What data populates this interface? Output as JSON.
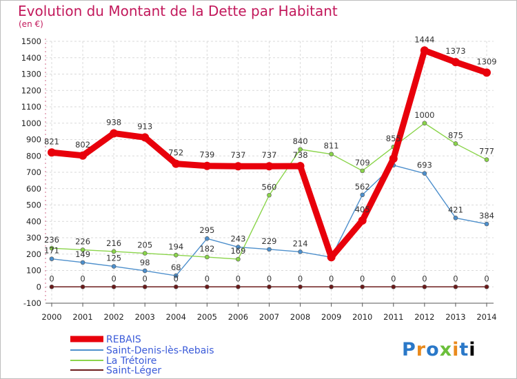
{
  "title": "Evolution du Montant de la Dette par Habitant",
  "subtitle": "(en €)",
  "logo": [
    "P",
    "r",
    "o",
    "x",
    "i",
    "t",
    "i"
  ],
  "chart_data": {
    "type": "line",
    "title": "Evolution du Montant de la Dette par Habitant",
    "ylabel": "(en €)",
    "xlabel": "",
    "x": [
      "2000",
      "2001",
      "2002",
      "2003",
      "2004",
      "2005",
      "2006",
      "2007",
      "2008",
      "2009",
      "2010",
      "2011",
      "2012",
      "2013",
      "2014"
    ],
    "ylim": [
      -100,
      1500
    ],
    "yticks": [
      -100,
      0,
      100,
      200,
      300,
      400,
      500,
      600,
      700,
      800,
      900,
      1000,
      1100,
      1200,
      1300,
      1400,
      1500
    ],
    "grid": true,
    "legend": "bottom-left",
    "series": [
      {
        "name": "REBAIS",
        "color": "#e8000b",
        "values": [
          821,
          802,
          938,
          913,
          752,
          739,
          737,
          737,
          738,
          181,
          405,
          783,
          1444,
          1373,
          1309
        ],
        "labels": [
          "821",
          "802",
          "938",
          "913",
          "752",
          "739",
          "737",
          "737",
          "738",
          "",
          "405",
          "",
          "1444",
          "1373",
          "1309"
        ]
      },
      {
        "name": "Saint-Denis-lès-Rebais",
        "color": "#4d8fcc",
        "values": [
          171,
          149,
          125,
          98,
          68,
          295,
          243,
          229,
          214,
          181,
          562,
          743,
          693,
          421,
          384
        ],
        "labels": [
          "171",
          "149",
          "125",
          "98",
          "68",
          "295",
          "243",
          "229",
          "214",
          "",
          "562",
          "",
          "693",
          "421",
          "384"
        ]
      },
      {
        "name": "La Trétoire",
        "color": "#8ad44a",
        "values": [
          236,
          226,
          216,
          205,
          194,
          182,
          169,
          560,
          840,
          811,
          709,
          855,
          1000,
          875,
          777
        ],
        "labels": [
          "236",
          "226",
          "216",
          "205",
          "194",
          "182",
          "169",
          "560",
          "840",
          "811",
          "709",
          "855",
          "1000",
          "875",
          "777"
        ]
      },
      {
        "name": "Saint-Léger",
        "color": "#6b1a1a",
        "values": [
          0,
          0,
          0,
          0,
          0,
          0,
          0,
          0,
          0,
          0,
          0,
          0,
          0,
          0,
          0
        ],
        "labels": [
          "0",
          "0",
          "0",
          "0",
          "0",
          "0",
          "0",
          "0",
          "0",
          "0",
          "0",
          "0",
          "0",
          "0",
          "0"
        ]
      }
    ]
  }
}
